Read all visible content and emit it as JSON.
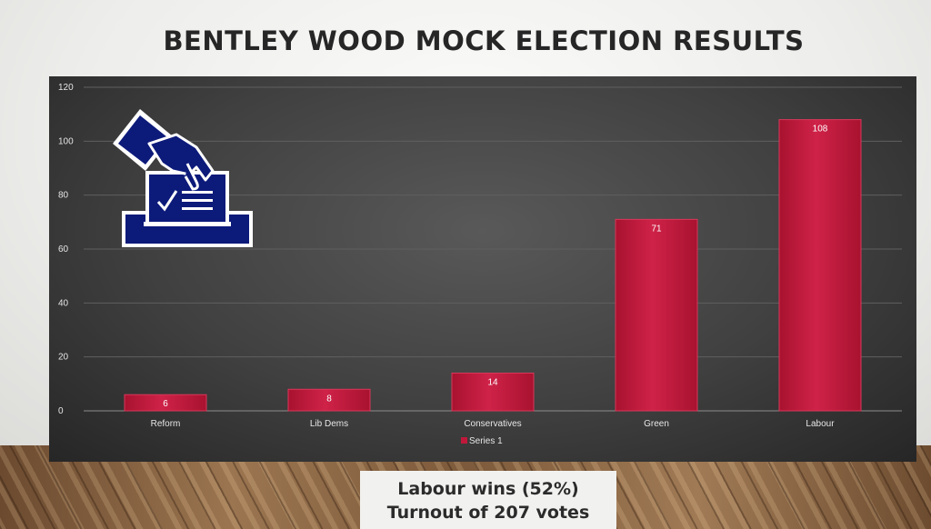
{
  "slide": {
    "title": "BENTLEY WOOD MOCK ELECTION RESULTS",
    "footer_line_1": "Labour wins (52%)",
    "footer_line_2": "Turnout of 207 votes"
  },
  "icon": {
    "name": "ballot-box-icon",
    "color": "#0c1a7a"
  },
  "chart_data": {
    "type": "bar",
    "categories": [
      "Reform",
      "Lib Dems",
      "Conservatives",
      "Green",
      "Labour"
    ],
    "series": [
      {
        "name": "Series 1",
        "values": [
          6,
          8,
          14,
          71,
          108
        ],
        "color": "#c0183a"
      }
    ],
    "ylim": [
      0,
      120
    ],
    "yticks": [
      0,
      20,
      40,
      60,
      80,
      100,
      120
    ],
    "grid": true,
    "data_labels": true,
    "legend": "bottom"
  }
}
